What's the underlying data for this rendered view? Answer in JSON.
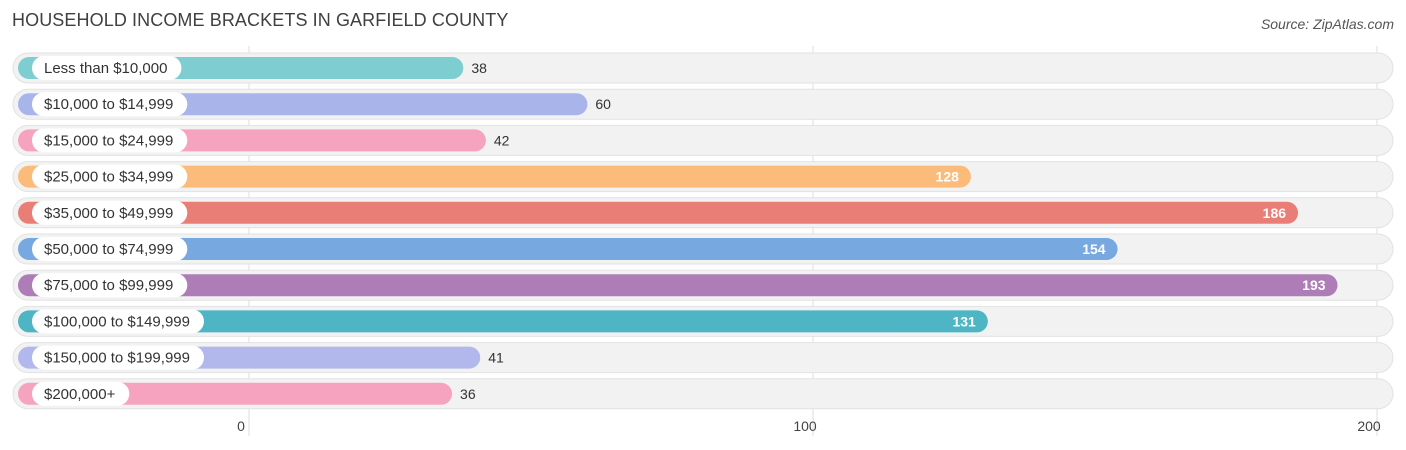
{
  "title": "HOUSEHOLD INCOME BRACKETS IN GARFIELD COUNTY",
  "source": "Source: ZipAtlas.com",
  "chart_data": {
    "type": "bar",
    "orientation": "horizontal",
    "categories": [
      "Less than $10,000",
      "$10,000 to $14,999",
      "$15,000 to $24,999",
      "$25,000 to $34,999",
      "$35,000 to $49,999",
      "$50,000 to $74,999",
      "$75,000 to $99,999",
      "$100,000 to $149,999",
      "$150,000 to $199,999",
      "$200,000+"
    ],
    "values": [
      38,
      60,
      42,
      128,
      186,
      154,
      193,
      131,
      41,
      36
    ],
    "colors": [
      "#7ecdd1",
      "#a9b4ea",
      "#f6a3bf",
      "#fbbb7a",
      "#e97e77",
      "#78a8e0",
      "#ae7cb6",
      "#4db5c4",
      "#b2b8ec",
      "#f6a3bf"
    ],
    "xlim": [
      0,
      200
    ],
    "xticks": [
      "0",
      "100",
      "200"
    ],
    "grid": true
  }
}
